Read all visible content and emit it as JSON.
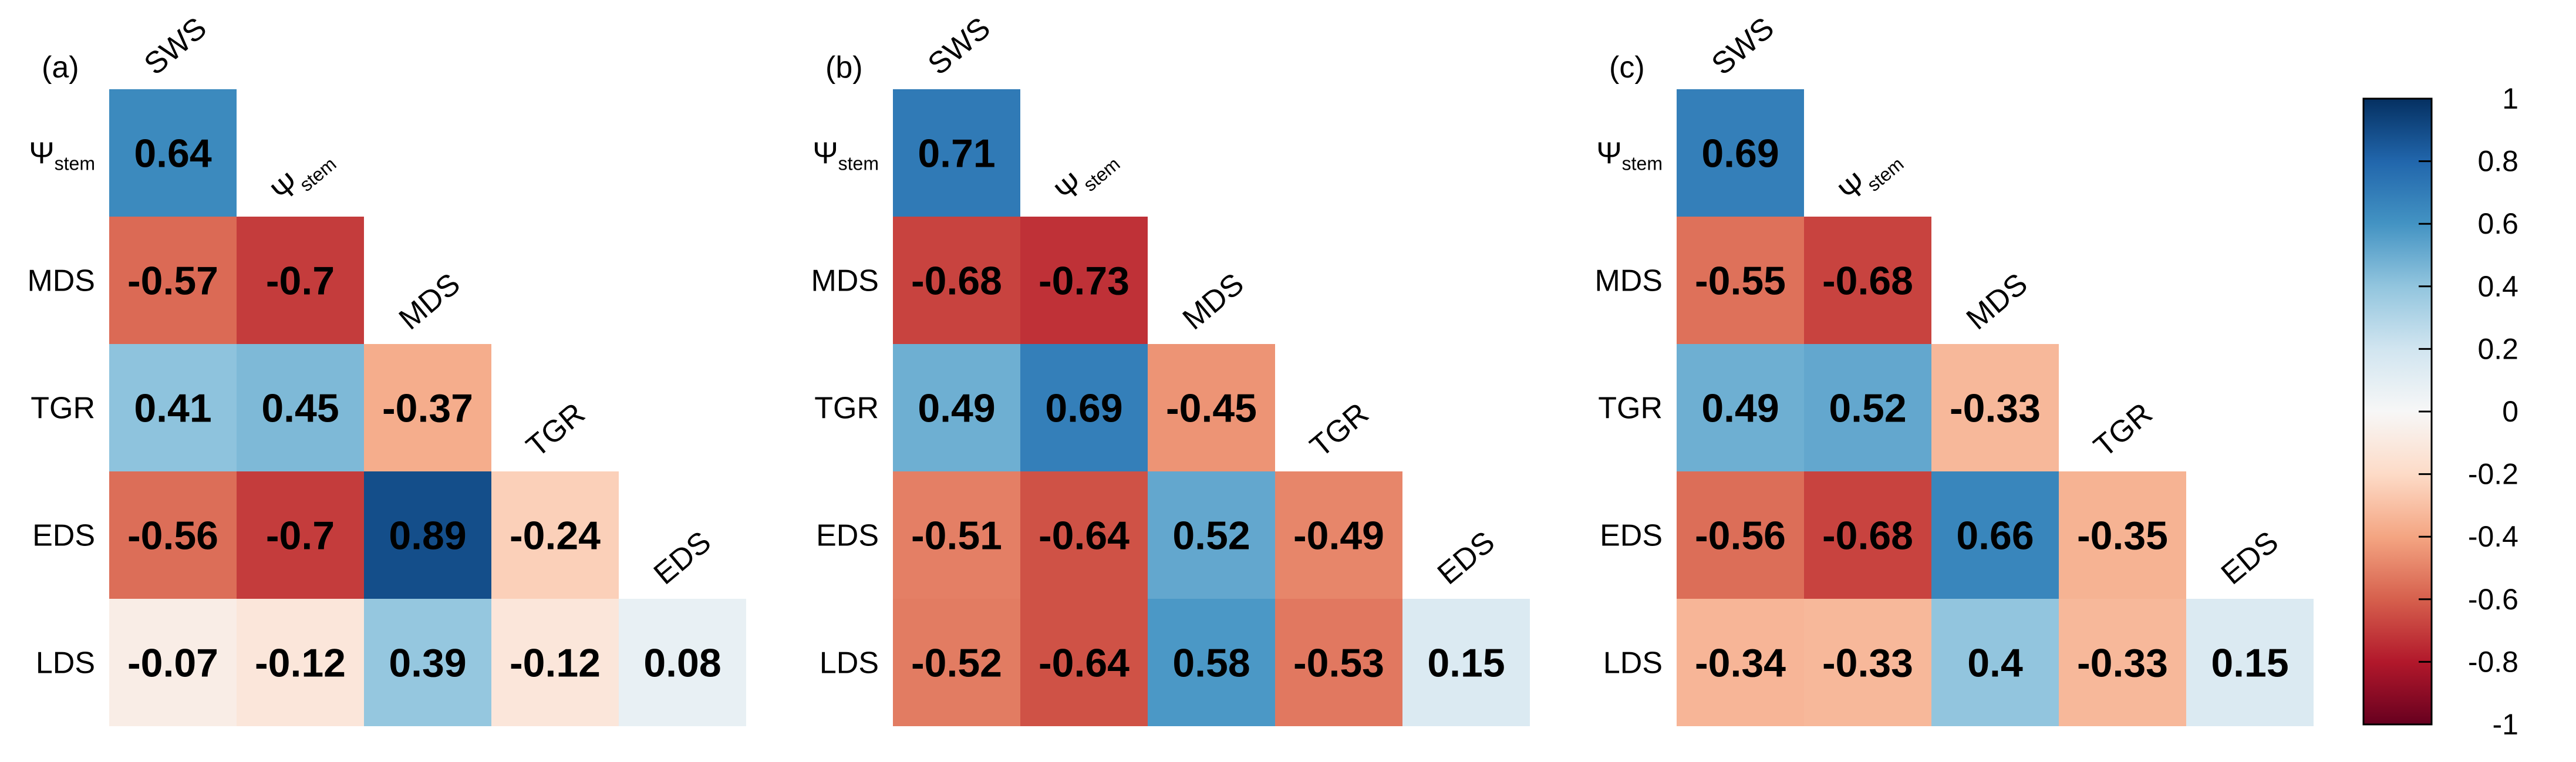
{
  "chart_data": {
    "type": "heatmap",
    "description_type": "lower-triangular correlation matrix",
    "variables": [
      "SWS",
      "Ψstem",
      "MDS",
      "TGR",
      "EDS",
      "LDS"
    ],
    "variable_labels": [
      {
        "main": "SWS",
        "sub": ""
      },
      {
        "main": "Ψ",
        "sub": "stem"
      },
      {
        "main": "MDS",
        "sub": ""
      },
      {
        "main": "TGR",
        "sub": ""
      },
      {
        "main": "EDS",
        "sub": ""
      },
      {
        "main": "LDS",
        "sub": ""
      }
    ],
    "panels": [
      {
        "label": "(a)",
        "rows": [
          {
            "row": 1,
            "values": [
              "0.64"
            ]
          },
          {
            "row": 2,
            "values": [
              "-0.57",
              "-0.7"
            ]
          },
          {
            "row": 3,
            "values": [
              "0.41",
              "0.45",
              "-0.37"
            ]
          },
          {
            "row": 4,
            "values": [
              "-0.56",
              "-0.7",
              "0.89",
              "-0.24"
            ]
          },
          {
            "row": 5,
            "values": [
              "-0.07",
              "-0.12",
              "0.39",
              "-0.12",
              "0.08"
            ]
          }
        ]
      },
      {
        "label": "(b)",
        "rows": [
          {
            "row": 1,
            "values": [
              "0.71"
            ]
          },
          {
            "row": 2,
            "values": [
              "-0.68",
              "-0.73"
            ]
          },
          {
            "row": 3,
            "values": [
              "0.49",
              "0.69",
              "-0.45"
            ]
          },
          {
            "row": 4,
            "values": [
              "-0.51",
              "-0.64",
              "0.52",
              "-0.49"
            ]
          },
          {
            "row": 5,
            "values": [
              "-0.52",
              "-0.64",
              "0.58",
              "-0.53",
              "0.15"
            ]
          }
        ]
      },
      {
        "label": "(c)",
        "rows": [
          {
            "row": 1,
            "values": [
              "0.69"
            ]
          },
          {
            "row": 2,
            "values": [
              "-0.55",
              "-0.68"
            ]
          },
          {
            "row": 3,
            "values": [
              "0.49",
              "0.52",
              "-0.33"
            ]
          },
          {
            "row": 4,
            "values": [
              "-0.56",
              "-0.68",
              "0.66",
              "-0.35"
            ]
          },
          {
            "row": 5,
            "values": [
              "-0.34",
              "-0.33",
              "0.4",
              "-0.33",
              "0.15"
            ]
          }
        ]
      }
    ],
    "colorbar": {
      "range": [
        -1,
        1
      ],
      "ticks": [
        "1",
        "0.8",
        "0.6",
        "0.4",
        "0.2",
        "0",
        "-0.2",
        "-0.4",
        "-0.6",
        "-0.8",
        "-1"
      ],
      "colors": {
        "pos_strong": "#053061",
        "pos_mid2": "#2166ac",
        "pos_mid": "#4393c3",
        "pos_light": "#92c5de",
        "pos_pale": "#d1e5f0",
        "neutral": "#f7f7f7",
        "neg_pale": "#fddbc7",
        "neg_light": "#f4a582",
        "neg_mid": "#d6604d",
        "neg_mid2": "#b2182b",
        "neg_strong": "#67001f"
      }
    }
  }
}
